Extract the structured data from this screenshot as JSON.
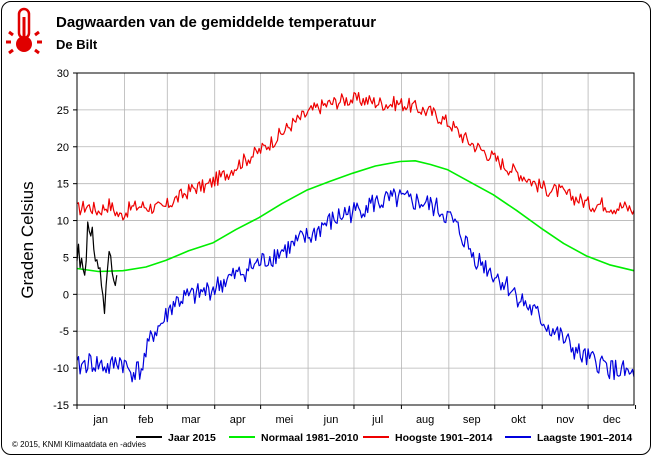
{
  "header": {
    "title": "Dagwaarden van de gemiddelde temperatuur",
    "subtitle": "De Bilt",
    "icon": "thermometer-icon"
  },
  "footer": {
    "copyright": "© 2015, KNMI Klimaatdata en -advies"
  },
  "chart_data": {
    "type": "line",
    "ylabel": "Graden Celsius",
    "xlabel": "",
    "ylim": [
      -15,
      30
    ],
    "yticks": [
      30,
      25,
      20,
      15,
      10,
      5,
      0,
      -5,
      -10,
      -15
    ],
    "xlim": [
      1,
      365
    ],
    "x_unit": "day of year",
    "months": [
      "jan",
      "feb",
      "mar",
      "apr",
      "mei",
      "jun",
      "jul",
      "aug",
      "sep",
      "okt",
      "nov",
      "dec"
    ],
    "grid": true,
    "legend_position": "bottom",
    "series": [
      {
        "name": "Jaar 2015",
        "color": "#000000",
        "x": [
          1,
          2,
          3,
          4,
          5,
          6,
          7,
          8,
          9,
          10,
          11,
          12,
          13,
          14,
          15,
          16,
          17,
          18,
          19,
          20,
          21,
          22,
          23,
          24,
          25,
          26,
          27
        ],
        "y": [
          4.5,
          6.8,
          3.6,
          4.9,
          3.4,
          2.6,
          4.5,
          9.8,
          8.6,
          7.9,
          9.1,
          6.1,
          4.5,
          4.7,
          3.5,
          3.6,
          1.1,
          -0.2,
          -2.6,
          1.2,
          3.6,
          5.8,
          5.2,
          2.9,
          1.9,
          1.2,
          2.6
        ]
      },
      {
        "name": "Normaal 1981–2010",
        "color": "#00ee00",
        "x": [
          1,
          15,
          31,
          46,
          59,
          74,
          90,
          105,
          120,
          135,
          151,
          166,
          181,
          196,
          212,
          222,
          232,
          243,
          258,
          273,
          288,
          304,
          319,
          334,
          349,
          365
        ],
        "y": [
          3.5,
          3.1,
          3.2,
          3.7,
          4.6,
          5.9,
          7.0,
          8.8,
          10.4,
          12.3,
          14.1,
          15.3,
          16.4,
          17.4,
          18.0,
          18.1,
          17.6,
          16.9,
          15.2,
          13.5,
          11.4,
          9.0,
          6.9,
          5.2,
          4.0,
          3.2
        ]
      },
      {
        "name": "Hoogste 1901–2014",
        "color": "#ee0000",
        "x": [
          1,
          8,
          15,
          22,
          29,
          36,
          43,
          50,
          57,
          64,
          71,
          78,
          85,
          92,
          99,
          106,
          113,
          120,
          127,
          134,
          141,
          148,
          155,
          162,
          169,
          176,
          183,
          190,
          197,
          204,
          211,
          218,
          225,
          232,
          239,
          246,
          253,
          260,
          267,
          274,
          281,
          288,
          295,
          302,
          309,
          316,
          323,
          330,
          337,
          344,
          351,
          358,
          365
        ],
        "y": [
          11.5,
          12.0,
          11.3,
          12.2,
          10.6,
          11.7,
          12.0,
          11.8,
          11.6,
          12.7,
          13.6,
          14.5,
          14.6,
          15.6,
          16.4,
          17.6,
          18.5,
          19.4,
          20.5,
          21.7,
          23.0,
          24.0,
          25.0,
          25.6,
          26.0,
          26.4,
          26.4,
          26.3,
          26.0,
          25.8,
          25.9,
          25.6,
          25.1,
          24.7,
          23.9,
          22.9,
          21.4,
          20.3,
          19.4,
          18.4,
          17.4,
          16.6,
          15.8,
          14.8,
          14.2,
          14.0,
          13.3,
          12.8,
          12.1,
          12.3,
          11.8,
          11.9,
          11.4
        ]
      },
      {
        "name": "Laagste 1901–2014",
        "color": "#0000dd",
        "x": [
          1,
          8,
          15,
          22,
          29,
          36,
          43,
          50,
          57,
          64,
          71,
          78,
          85,
          92,
          99,
          106,
          113,
          120,
          127,
          134,
          141,
          148,
          155,
          162,
          169,
          176,
          183,
          190,
          197,
          204,
          211,
          218,
          225,
          232,
          239,
          246,
          253,
          260,
          267,
          274,
          281,
          288,
          295,
          302,
          309,
          316,
          323,
          330,
          337,
          344,
          351,
          358,
          365
        ],
        "y": [
          -10.0,
          -9.2,
          -9.5,
          -10.0,
          -8.9,
          -10.5,
          -10.2,
          -5.5,
          -3.8,
          -1.2,
          -0.5,
          -0.2,
          0.4,
          1.0,
          2.0,
          2.6,
          3.5,
          4.2,
          5.0,
          5.8,
          6.4,
          7.4,
          8.0,
          9.4,
          10.0,
          11.0,
          11.2,
          12.1,
          12.4,
          12.7,
          12.9,
          12.6,
          12.5,
          12.0,
          11.3,
          10.0,
          7.8,
          5.2,
          4.0,
          2.6,
          1.4,
          0.0,
          -1.6,
          -2.9,
          -4.4,
          -5.6,
          -6.9,
          -8.3,
          -9.0,
          -9.4,
          -10.2,
          -10.5,
          -11.2
        ]
      }
    ]
  }
}
